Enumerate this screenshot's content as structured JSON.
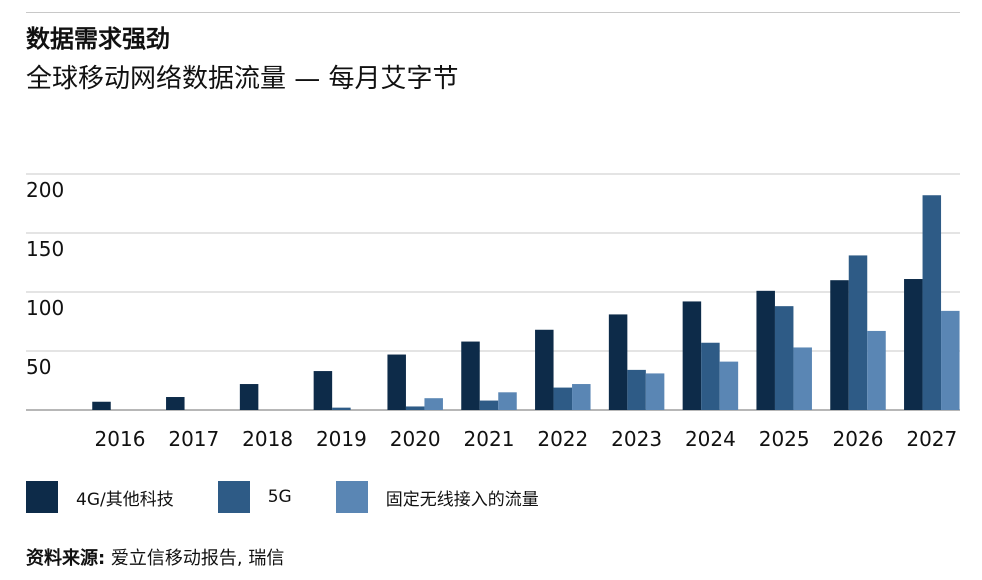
{
  "header": {
    "title": "数据需求强劲",
    "subtitle": "全球移动网络数据流量 — 每月艾字节"
  },
  "colors": {
    "series_4g": "#0d2b49",
    "series_5g": "#2e5b86",
    "series_fwa": "#5a86b4",
    "grid": "#c8c8c8",
    "axis": "#8c8c8c"
  },
  "chart_data": {
    "type": "bar",
    "title": "数据需求强劲",
    "subtitle": "全球移动网络数据流量 — 每月艾字节",
    "xlabel": "",
    "ylabel": "",
    "categories": [
      "2016",
      "2017",
      "2018",
      "2019",
      "2020",
      "2021",
      "2022",
      "2023",
      "2024",
      "2025",
      "2026",
      "2027"
    ],
    "ylim": [
      0,
      200
    ],
    "yticks": [
      50,
      100,
      150,
      200
    ],
    "grid": true,
    "legend_position": "bottom",
    "series": [
      {
        "name": "4G/其他科技",
        "values": [
          7,
          11,
          22,
          33,
          47,
          58,
          68,
          81,
          92,
          101,
          110,
          111
        ]
      },
      {
        "name": "5G",
        "values": [
          0,
          0,
          0,
          2,
          3,
          8,
          19,
          34,
          57,
          88,
          131,
          182
        ]
      },
      {
        "name": "固定无线接入的流量",
        "values": [
          0,
          0,
          0,
          0,
          10,
          15,
          22,
          31,
          41,
          53,
          67,
          84
        ]
      }
    ]
  },
  "source": {
    "label": "资料来源:",
    "text": " 爱立信移动报告, 瑞信"
  }
}
